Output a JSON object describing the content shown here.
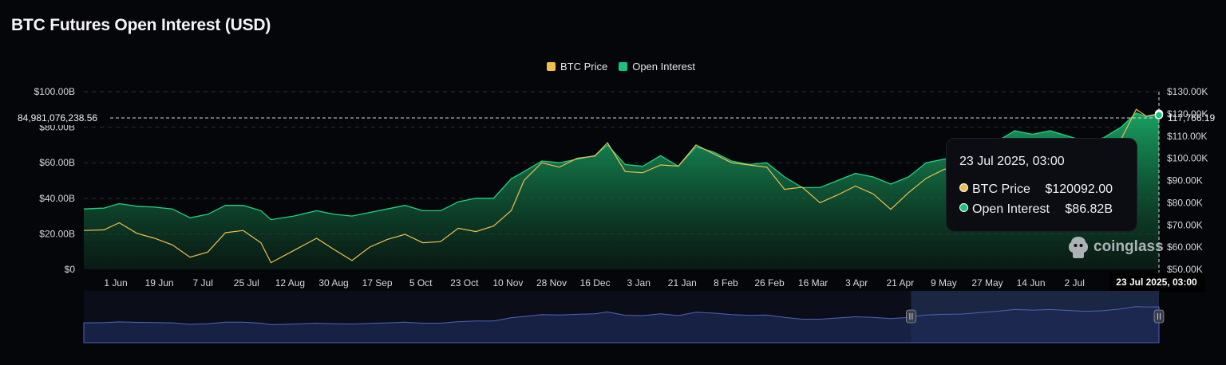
{
  "title": "BTC Futures Open Interest (USD)",
  "legend": [
    {
      "label": "BTC Price",
      "color": "#f0c04e"
    },
    {
      "label": "Open Interest",
      "color": "#19c37d"
    }
  ],
  "crosshair": {
    "left_label": "84,981,076,238.56",
    "right_label": "117,766.19",
    "x_label": "23 Jul 2025, 03:00"
  },
  "tooltip": {
    "time": "23 Jul 2025, 03:00",
    "rows": [
      {
        "label": "BTC Price",
        "value": "$120092.00",
        "color": "#f0c04e"
      },
      {
        "label": "Open Interest",
        "value": "$86.82B",
        "color": "#19c37d"
      }
    ]
  },
  "brand": "coinglass",
  "chart_data": {
    "type": "area",
    "title": "BTC Futures Open Interest (USD)",
    "grid": true,
    "legend_position": "top-center",
    "x_ticks": [
      "1 Jun",
      "19 Jun",
      "7 Jul",
      "25 Jul",
      "12 Aug",
      "30 Aug",
      "17 Sep",
      "5 Oct",
      "23 Oct",
      "10 Nov",
      "28 Nov",
      "16 Dec",
      "3 Jan",
      "21 Jan",
      "8 Feb",
      "26 Feb",
      "16 Mar",
      "3 Apr",
      "21 Apr",
      "9 May",
      "27 May",
      "14 Jun",
      "2 Jul"
    ],
    "y_left": {
      "ticks": [
        "$0",
        "$20.00B",
        "$40.00B",
        "$60.00B",
        "$80.00B",
        "$100.00B"
      ],
      "range": [
        0,
        100
      ]
    },
    "y_right": {
      "ticks": [
        "$50.00K",
        "$60.00K",
        "$70.00K",
        "$80.00K",
        "$90.00K",
        "$100.00K",
        "$110.00K",
        "$120.00K",
        "$130.00K"
      ],
      "range": [
        50000,
        130000
      ]
    },
    "x_range": [
      "2024-05-24",
      "2025-07-23"
    ],
    "series": [
      {
        "name": "Open Interest",
        "axis": "left",
        "unit": "billion USD",
        "points": [
          [
            "2024-05-24",
            34
          ],
          [
            "2024-06-01",
            34.5
          ],
          [
            "2024-06-07",
            37
          ],
          [
            "2024-06-14",
            35.5
          ],
          [
            "2024-06-21",
            35
          ],
          [
            "2024-06-28",
            34
          ],
          [
            "2024-07-05",
            29
          ],
          [
            "2024-07-12",
            31
          ],
          [
            "2024-07-19",
            36
          ],
          [
            "2024-07-26",
            36
          ],
          [
            "2024-08-02",
            33
          ],
          [
            "2024-08-06",
            28
          ],
          [
            "2024-08-15",
            30
          ],
          [
            "2024-08-24",
            33
          ],
          [
            "2024-08-31",
            31
          ],
          [
            "2024-09-07",
            30
          ],
          [
            "2024-09-14",
            32
          ],
          [
            "2024-09-21",
            34
          ],
          [
            "2024-09-28",
            36
          ],
          [
            "2024-10-05",
            33
          ],
          [
            "2024-10-12",
            33
          ],
          [
            "2024-10-19",
            38
          ],
          [
            "2024-10-26",
            40
          ],
          [
            "2024-11-02",
            40
          ],
          [
            "2024-11-09",
            51
          ],
          [
            "2024-11-14",
            55
          ],
          [
            "2024-11-21",
            61
          ],
          [
            "2024-11-28",
            60
          ],
          [
            "2024-12-05",
            62
          ],
          [
            "2024-12-12",
            64
          ],
          [
            "2024-12-17",
            70
          ],
          [
            "2024-12-24",
            59
          ],
          [
            "2024-12-31",
            58
          ],
          [
            "2025-01-07",
            64
          ],
          [
            "2025-01-14",
            58
          ],
          [
            "2025-01-21",
            69
          ],
          [
            "2025-01-28",
            66
          ],
          [
            "2025-02-04",
            61
          ],
          [
            "2025-02-11",
            59
          ],
          [
            "2025-02-18",
            60
          ],
          [
            "2025-02-25",
            52
          ],
          [
            "2025-03-04",
            46
          ],
          [
            "2025-03-11",
            46
          ],
          [
            "2025-03-18",
            50
          ],
          [
            "2025-03-25",
            54
          ],
          [
            "2025-04-01",
            52
          ],
          [
            "2025-04-08",
            48
          ],
          [
            "2025-04-15",
            52
          ],
          [
            "2025-04-22",
            60
          ],
          [
            "2025-04-29",
            62
          ],
          [
            "2025-05-06",
            63
          ],
          [
            "2025-05-13",
            68
          ],
          [
            "2025-05-20",
            72
          ],
          [
            "2025-05-27",
            78
          ],
          [
            "2025-06-03",
            76
          ],
          [
            "2025-06-10",
            78
          ],
          [
            "2025-06-17",
            75
          ],
          [
            "2025-06-24",
            72
          ],
          [
            "2025-07-01",
            74
          ],
          [
            "2025-07-08",
            80
          ],
          [
            "2025-07-14",
            88
          ],
          [
            "2025-07-18",
            86
          ],
          [
            "2025-07-23",
            86.82
          ]
        ]
      },
      {
        "name": "BTC Price",
        "axis": "right",
        "unit": "USD",
        "points": [
          [
            "2024-05-24",
            67500
          ],
          [
            "2024-06-01",
            67800
          ],
          [
            "2024-06-07",
            71000
          ],
          [
            "2024-06-14",
            66200
          ],
          [
            "2024-06-21",
            64000
          ],
          [
            "2024-06-28",
            61000
          ],
          [
            "2024-07-05",
            55500
          ],
          [
            "2024-07-12",
            57800
          ],
          [
            "2024-07-19",
            66500
          ],
          [
            "2024-07-26",
            67500
          ],
          [
            "2024-08-02",
            62000
          ],
          [
            "2024-08-06",
            53000
          ],
          [
            "2024-08-15",
            58500
          ],
          [
            "2024-08-24",
            64000
          ],
          [
            "2024-08-31",
            58900
          ],
          [
            "2024-09-07",
            54000
          ],
          [
            "2024-09-14",
            60000
          ],
          [
            "2024-09-21",
            63500
          ],
          [
            "2024-09-28",
            65800
          ],
          [
            "2024-10-05",
            62000
          ],
          [
            "2024-10-12",
            62500
          ],
          [
            "2024-10-19",
            68500
          ],
          [
            "2024-10-26",
            67000
          ],
          [
            "2024-11-02",
            69500
          ],
          [
            "2024-11-09",
            76500
          ],
          [
            "2024-11-14",
            90000
          ],
          [
            "2024-11-21",
            98000
          ],
          [
            "2024-11-28",
            96000
          ],
          [
            "2024-12-05",
            100000
          ],
          [
            "2024-12-12",
            101000
          ],
          [
            "2024-12-17",
            107000
          ],
          [
            "2024-12-24",
            94000
          ],
          [
            "2024-12-31",
            93500
          ],
          [
            "2025-01-07",
            97000
          ],
          [
            "2025-01-14",
            96500
          ],
          [
            "2025-01-21",
            106000
          ],
          [
            "2025-01-28",
            102000
          ],
          [
            "2025-02-04",
            98000
          ],
          [
            "2025-02-11",
            97000
          ],
          [
            "2025-02-18",
            96000
          ],
          [
            "2025-02-25",
            86000
          ],
          [
            "2025-03-04",
            87000
          ],
          [
            "2025-03-11",
            80000
          ],
          [
            "2025-03-18",
            83500
          ],
          [
            "2025-03-25",
            87500
          ],
          [
            "2025-04-01",
            84000
          ],
          [
            "2025-04-08",
            77000
          ],
          [
            "2025-04-15",
            84500
          ],
          [
            "2025-04-22",
            91000
          ],
          [
            "2025-04-29",
            95000
          ],
          [
            "2025-05-06",
            96500
          ],
          [
            "2025-05-13",
            103000
          ],
          [
            "2025-05-20",
            106000
          ],
          [
            "2025-05-27",
            109000
          ],
          [
            "2025-06-03",
            105500
          ],
          [
            "2025-06-10",
            108500
          ],
          [
            "2025-06-17",
            104500
          ],
          [
            "2025-06-24",
            105500
          ],
          [
            "2025-07-01",
            106000
          ],
          [
            "2025-07-08",
            108500
          ],
          [
            "2025-07-14",
            122000
          ],
          [
            "2025-07-18",
            119000
          ],
          [
            "2025-07-23",
            120092
          ]
        ]
      }
    ],
    "overview_range": [
      "2025-04-16",
      "2025-07-23"
    ]
  }
}
